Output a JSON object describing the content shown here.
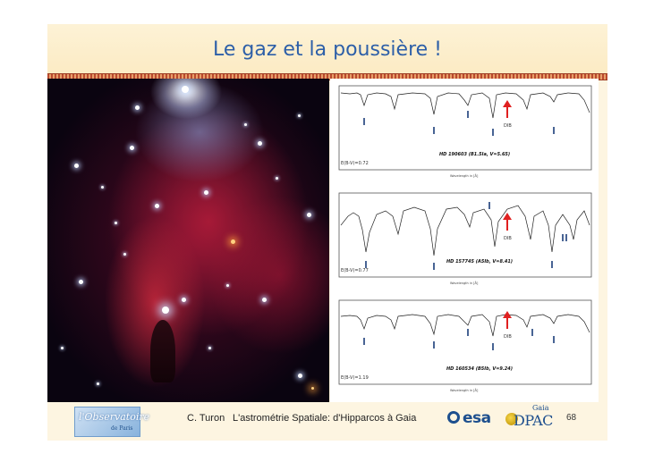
{
  "slide": {
    "title": "Le gaz et la poussière !",
    "page_number": "68"
  },
  "footer": {
    "author": "C. Turon",
    "talk_title": "L'astrométrie Spatiale: d'Hipparcos à Gaia",
    "observatoire_logo_main": "l'Observatoire",
    "observatoire_logo_sub": "de Paris",
    "esa_logo": "esa",
    "gaia_label": "Gaia",
    "dpac_label": "DPAC"
  },
  "spectra": [
    {
      "star": "HD 190603 (B1.5Ia, V=5.65)",
      "color_excess": "E(B-V)=0.72",
      "dib_label": "DIB",
      "axis_label": "Wavelength in [Å]"
    },
    {
      "star": "HD 157745 (A5Ib, V=8.41)",
      "color_excess": "E(B-V)=0.77",
      "dib_label": "DIB",
      "axis_label": "Wavelength in [Å]"
    },
    {
      "star": "HD 160534 (B5Ib, V=9.24)",
      "color_excess": "E(B-V)=1.19",
      "dib_label": "DIB",
      "axis_label": "Wavelength in [Å]"
    }
  ],
  "colors": {
    "title": "#2d5fa8",
    "dib_arrow": "#e02020"
  }
}
